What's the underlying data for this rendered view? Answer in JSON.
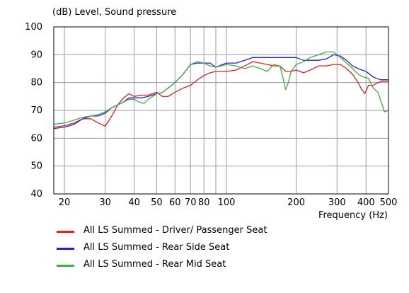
{
  "chart_data": {
    "type": "line",
    "title": "",
    "ylabel": "(dB)  Level, Sound pressure",
    "xlabel": "Frequency  (Hz)",
    "x_scale": "log",
    "xlim": [
      18,
      500
    ],
    "ylim": [
      40,
      100
    ],
    "y_ticks": [
      "40",
      "50",
      "60",
      "70",
      "80",
      "90",
      "100"
    ],
    "x_ticks": [
      {
        "value": 20,
        "label": "20"
      },
      {
        "value": 30,
        "label": "30"
      },
      {
        "value": 40,
        "label": "40"
      },
      {
        "value": 50,
        "label": "50"
      },
      {
        "value": 60,
        "label": "60"
      },
      {
        "value": 70,
        "label": "70"
      },
      {
        "value": 80,
        "label": "80"
      },
      {
        "value": 100,
        "label": "100"
      },
      {
        "value": 200,
        "label": "200"
      },
      {
        "value": 300,
        "label": "300"
      },
      {
        "value": 400,
        "label": "400"
      },
      {
        "value": 500,
        "label": "500"
      }
    ],
    "grid": true,
    "legend_position": "bottom-left",
    "series": [
      {
        "name": "All LS Summed - Driver/ Passenger Seat",
        "color": "#dd2222",
        "points": [
          [
            18,
            64
          ],
          [
            20,
            64.5
          ],
          [
            22,
            65.5
          ],
          [
            24,
            67
          ],
          [
            26,
            67
          ],
          [
            28,
            65.5
          ],
          [
            30,
            64.3
          ],
          [
            32,
            68
          ],
          [
            34,
            72
          ],
          [
            36,
            74.5
          ],
          [
            38,
            76
          ],
          [
            40,
            75
          ],
          [
            43,
            75.5
          ],
          [
            46,
            75.5
          ],
          [
            50,
            76.5
          ],
          [
            53,
            75
          ],
          [
            56,
            75
          ],
          [
            60,
            76.5
          ],
          [
            65,
            78
          ],
          [
            70,
            79
          ],
          [
            75,
            81
          ],
          [
            80,
            82.5
          ],
          [
            85,
            83.5
          ],
          [
            90,
            84
          ],
          [
            100,
            84
          ],
          [
            110,
            84.5
          ],
          [
            120,
            86
          ],
          [
            130,
            87.5
          ],
          [
            140,
            87
          ],
          [
            150,
            86.5
          ],
          [
            160,
            86
          ],
          [
            170,
            86
          ],
          [
            180,
            84
          ],
          [
            190,
            84
          ],
          [
            200,
            84.5
          ],
          [
            215,
            83.5
          ],
          [
            230,
            84.5
          ],
          [
            250,
            86
          ],
          [
            270,
            86
          ],
          [
            290,
            86.5
          ],
          [
            310,
            86.5
          ],
          [
            330,
            85
          ],
          [
            350,
            83
          ],
          [
            370,
            80
          ],
          [
            380,
            78
          ],
          [
            395,
            76
          ],
          [
            410,
            79
          ],
          [
            430,
            79
          ],
          [
            450,
            80
          ],
          [
            470,
            80.5
          ],
          [
            500,
            80.5
          ]
        ]
      },
      {
        "name": "All LS Summed - Rear Side Seat",
        "color": "#2222cc",
        "points": [
          [
            18,
            63.5
          ],
          [
            20,
            64
          ],
          [
            22,
            65
          ],
          [
            24,
            67
          ],
          [
            26,
            68
          ],
          [
            28,
            68
          ],
          [
            30,
            69
          ],
          [
            32,
            71
          ],
          [
            34,
            72
          ],
          [
            36,
            73
          ],
          [
            38,
            74.5
          ],
          [
            40,
            74.5
          ],
          [
            43,
            74.5
          ],
          [
            46,
            75
          ],
          [
            50,
            76
          ],
          [
            53,
            76.5
          ],
          [
            56,
            78
          ],
          [
            60,
            80
          ],
          [
            65,
            83
          ],
          [
            70,
            86.5
          ],
          [
            75,
            87
          ],
          [
            80,
            87
          ],
          [
            85,
            87
          ],
          [
            90,
            85.5
          ],
          [
            100,
            87
          ],
          [
            110,
            87
          ],
          [
            120,
            88
          ],
          [
            130,
            89
          ],
          [
            140,
            89
          ],
          [
            150,
            89
          ],
          [
            160,
            89
          ],
          [
            170,
            89
          ],
          [
            180,
            89
          ],
          [
            190,
            89
          ],
          [
            200,
            89
          ],
          [
            215,
            88
          ],
          [
            230,
            88
          ],
          [
            250,
            88
          ],
          [
            270,
            88.5
          ],
          [
            290,
            90
          ],
          [
            310,
            89.5
          ],
          [
            330,
            88
          ],
          [
            350,
            86
          ],
          [
            370,
            85
          ],
          [
            400,
            84
          ],
          [
            430,
            82
          ],
          [
            460,
            81
          ],
          [
            500,
            81
          ]
        ]
      },
      {
        "name": "All LS Summed - Rear Mid Seat",
        "color": "#44aa44",
        "points": [
          [
            18,
            65
          ],
          [
            20,
            65.5
          ],
          [
            22,
            66.5
          ],
          [
            24,
            67.5
          ],
          [
            26,
            68
          ],
          [
            28,
            68.5
          ],
          [
            30,
            69.5
          ],
          [
            32,
            71
          ],
          [
            34,
            72
          ],
          [
            36,
            73
          ],
          [
            38,
            74
          ],
          [
            40,
            74
          ],
          [
            42,
            73
          ],
          [
            44,
            72.5
          ],
          [
            46,
            74
          ],
          [
            50,
            76
          ],
          [
            53,
            76.5
          ],
          [
            56,
            78
          ],
          [
            60,
            80
          ],
          [
            65,
            83
          ],
          [
            70,
            86.5
          ],
          [
            75,
            87.5
          ],
          [
            80,
            87
          ],
          [
            85,
            86
          ],
          [
            90,
            85.5
          ],
          [
            100,
            86.5
          ],
          [
            110,
            86
          ],
          [
            120,
            85
          ],
          [
            130,
            86
          ],
          [
            140,
            85
          ],
          [
            150,
            84
          ],
          [
            160,
            86.5
          ],
          [
            170,
            86
          ],
          [
            175,
            82
          ],
          [
            180,
            77.5
          ],
          [
            185,
            80
          ],
          [
            190,
            84
          ],
          [
            200,
            86.5
          ],
          [
            215,
            87.5
          ],
          [
            230,
            89
          ],
          [
            250,
            90
          ],
          [
            270,
            91
          ],
          [
            290,
            91
          ],
          [
            310,
            89
          ],
          [
            330,
            87
          ],
          [
            350,
            85
          ],
          [
            370,
            83
          ],
          [
            390,
            82
          ],
          [
            410,
            81.5
          ],
          [
            430,
            78
          ],
          [
            450,
            76.5
          ],
          [
            470,
            72
          ],
          [
            480,
            69.5
          ],
          [
            500,
            70
          ]
        ]
      }
    ]
  }
}
